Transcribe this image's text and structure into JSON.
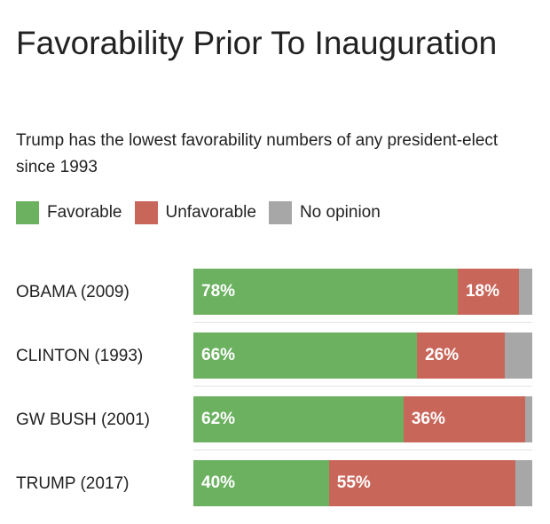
{
  "title": "Favorability Prior To Inauguration",
  "subtitle": "Trump has the lowest favorability numbers of any president-elect since 1993",
  "colors": {
    "favorable": "#6bb160",
    "unfavorable": "#c9665a",
    "no_opinion": "#a7a7a7"
  },
  "legend": [
    {
      "key": "favorable",
      "label": "Favorable"
    },
    {
      "key": "unfavorable",
      "label": "Unfavorable"
    },
    {
      "key": "no_opinion",
      "label": "No opinion"
    }
  ],
  "chart_data": {
    "type": "bar",
    "orientation": "horizontal",
    "stacked": true,
    "title": "Favorability Prior To Inauguration",
    "subtitle": "Trump has the lowest favorability numbers of any president-elect since 1993",
    "categories": [
      "OBAMA (2009)",
      "CLINTON (1993)",
      "GW BUSH (2001)",
      "TRUMP (2017)"
    ],
    "series": [
      {
        "name": "Favorable",
        "key": "favorable",
        "values": [
          78,
          66,
          62,
          40
        ],
        "labels": [
          "78%",
          "66%",
          "62%",
          "40%"
        ]
      },
      {
        "name": "Unfavorable",
        "key": "unfavorable",
        "values": [
          18,
          26,
          36,
          55
        ],
        "labels": [
          "18%",
          "26%",
          "36%",
          "55%"
        ]
      },
      {
        "name": "No opinion",
        "key": "no_opinion",
        "values": [
          4,
          8,
          2,
          5
        ],
        "labels": [
          "",
          "",
          "",
          ""
        ]
      }
    ],
    "xlim": [
      0,
      100
    ],
    "legend_position": "top-left",
    "grid": false
  }
}
